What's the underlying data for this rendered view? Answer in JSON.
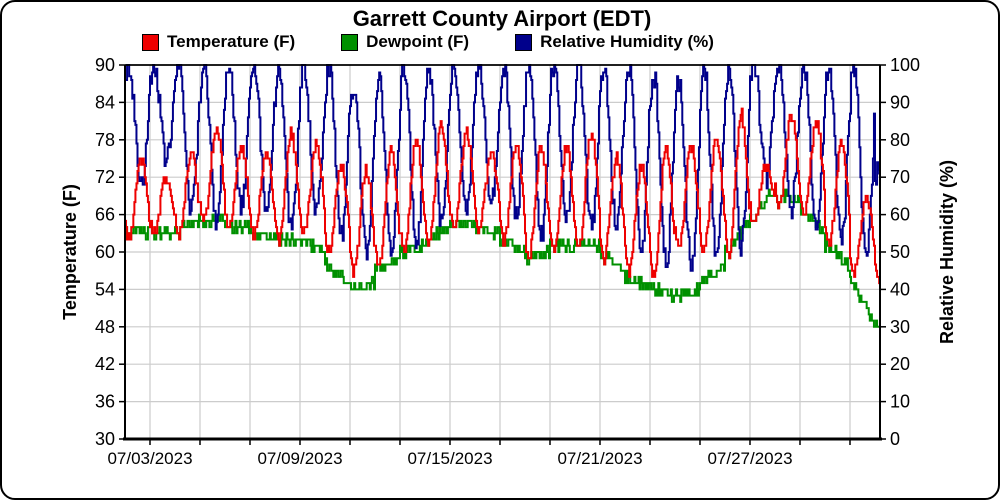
{
  "title": "Garrett County Airport (EDT)",
  "legend": [
    {
      "label": "Temperature (F)",
      "color": "#ee0000"
    },
    {
      "label": "Dewpoint (F)",
      "color": "#009000"
    },
    {
      "label": "Relative Humidity (%)",
      "color": "#00008b"
    }
  ],
  "colors": {
    "grid": "#cccccc",
    "axis": "#000000",
    "background": "#ffffff"
  },
  "chart_data": {
    "type": "line",
    "style": "hourly step lines, two y-axes",
    "title": "Garrett County Airport (EDT)",
    "grid": true,
    "noise_seed": 20230702,
    "x_axis": {
      "start_date": "07/02/2023",
      "end_date": "08/01/2023",
      "minor_tick_interval_days": 2,
      "label_interval_days": 6,
      "tick_labels": [
        "07/03/2023",
        "07/09/2023",
        "07/15/2023",
        "07/21/2023",
        "07/27/2023"
      ]
    },
    "y_left": {
      "label": "Temperature (F)",
      "min": 30,
      "max": 90,
      "tick_step": 6,
      "ticks": [
        30,
        36,
        42,
        48,
        54,
        60,
        66,
        72,
        78,
        84,
        90
      ]
    },
    "y_right": {
      "label": "Relative Humidity (%)",
      "min": 0,
      "max": 100,
      "tick_step": 10,
      "ticks": [
        0,
        10,
        20,
        30,
        40,
        50,
        60,
        70,
        80,
        90,
        100
      ]
    },
    "series_meta": [
      {
        "name": "Temperature (F)",
        "color": "#ee0000",
        "axis": "left"
      },
      {
        "name": "Dewpoint (F)",
        "color": "#009000",
        "axis": "left"
      },
      {
        "name": "Relative Humidity (%)",
        "color": "#00008b",
        "axis": "right"
      }
    ],
    "daily": [
      {
        "date": "07/02/2023",
        "temp_min": 62,
        "temp_max": 75,
        "dewpoint_start": 64,
        "dewpoint_end": 63,
        "humidity_max": 100,
        "humidity_min": 68
      },
      {
        "date": "07/03/2023",
        "temp_min": 63,
        "temp_max": 72,
        "dewpoint_start": 63,
        "dewpoint_end": 63,
        "humidity_max": 100,
        "humidity_min": 74
      },
      {
        "date": "07/04/2023",
        "temp_min": 63,
        "temp_max": 76,
        "dewpoint_start": 64,
        "dewpoint_end": 65,
        "humidity_max": 100,
        "humidity_min": 62
      },
      {
        "date": "07/05/2023",
        "temp_min": 65,
        "temp_max": 80,
        "dewpoint_start": 65,
        "dewpoint_end": 65,
        "humidity_max": 100,
        "humidity_min": 58
      },
      {
        "date": "07/06/2023",
        "temp_min": 64,
        "temp_max": 77,
        "dewpoint_start": 64,
        "dewpoint_end": 64,
        "humidity_max": 100,
        "humidity_min": 62
      },
      {
        "date": "07/07/2023",
        "temp_min": 63,
        "temp_max": 76,
        "dewpoint_start": 63,
        "dewpoint_end": 62,
        "humidity_max": 100,
        "humidity_min": 62
      },
      {
        "date": "07/08/2023",
        "temp_min": 62,
        "temp_max": 79,
        "dewpoint_start": 62,
        "dewpoint_end": 62,
        "humidity_max": 100,
        "humidity_min": 56
      },
      {
        "date": "07/09/2023",
        "temp_min": 63,
        "temp_max": 77,
        "dewpoint_start": 62,
        "dewpoint_end": 60,
        "humidity_max": 100,
        "humidity_min": 60
      },
      {
        "date": "07/10/2023",
        "temp_min": 60,
        "temp_max": 74,
        "dewpoint_start": 58,
        "dewpoint_end": 55,
        "humidity_max": 100,
        "humidity_min": 54
      },
      {
        "date": "07/11/2023",
        "temp_min": 57,
        "temp_max": 73,
        "dewpoint_start": 54,
        "dewpoint_end": 55,
        "humidity_max": 95,
        "humidity_min": 50
      },
      {
        "date": "07/12/2023",
        "temp_min": 58,
        "temp_max": 76,
        "dewpoint_start": 57,
        "dewpoint_end": 59,
        "humidity_max": 96,
        "humidity_min": 49
      },
      {
        "date": "07/13/2023",
        "temp_min": 60,
        "temp_max": 78,
        "dewpoint_start": 60,
        "dewpoint_end": 61,
        "humidity_max": 100,
        "humidity_min": 52
      },
      {
        "date": "07/14/2023",
        "temp_min": 62,
        "temp_max": 80,
        "dewpoint_start": 62,
        "dewpoint_end": 64,
        "humidity_max": 100,
        "humidity_min": 58
      },
      {
        "date": "07/15/2023",
        "temp_min": 64,
        "temp_max": 79,
        "dewpoint_start": 65,
        "dewpoint_end": 64,
        "humidity_max": 100,
        "humidity_min": 62
      },
      {
        "date": "07/16/2023",
        "temp_min": 64,
        "temp_max": 76,
        "dewpoint_start": 64,
        "dewpoint_end": 63,
        "humidity_max": 100,
        "humidity_min": 64
      },
      {
        "date": "07/17/2023",
        "temp_min": 62,
        "temp_max": 77,
        "dewpoint_start": 62,
        "dewpoint_end": 60,
        "humidity_max": 100,
        "humidity_min": 60
      },
      {
        "date": "07/18/2023",
        "temp_min": 59,
        "temp_max": 77,
        "dewpoint_start": 59,
        "dewpoint_end": 60,
        "humidity_max": 100,
        "humidity_min": 54
      },
      {
        "date": "07/19/2023",
        "temp_min": 60,
        "temp_max": 77,
        "dewpoint_start": 61,
        "dewpoint_end": 61,
        "humidity_max": 100,
        "humidity_min": 58
      },
      {
        "date": "07/20/2023",
        "temp_min": 61,
        "temp_max": 79,
        "dewpoint_start": 62,
        "dewpoint_end": 61,
        "humidity_max": 100,
        "humidity_min": 56
      },
      {
        "date": "07/21/2023",
        "temp_min": 59,
        "temp_max": 75,
        "dewpoint_start": 60,
        "dewpoint_end": 57,
        "humidity_max": 100,
        "humidity_min": 58
      },
      {
        "date": "07/22/2023",
        "temp_min": 57,
        "temp_max": 74,
        "dewpoint_start": 56,
        "dewpoint_end": 54,
        "humidity_max": 100,
        "humidity_min": 50
      },
      {
        "date": "07/23/2023",
        "temp_min": 56,
        "temp_max": 77,
        "dewpoint_start": 54,
        "dewpoint_end": 53,
        "humidity_max": 97,
        "humidity_min": 48
      },
      {
        "date": "07/24/2023",
        "temp_min": 61,
        "temp_max": 77,
        "dewpoint_start": 53,
        "dewpoint_end": 54,
        "humidity_max": 96,
        "humidity_min": 46
      },
      {
        "date": "07/25/2023",
        "temp_min": 60,
        "temp_max": 78,
        "dewpoint_start": 55,
        "dewpoint_end": 58,
        "humidity_max": 100,
        "humidity_min": 50
      },
      {
        "date": "07/26/2023",
        "temp_min": 60,
        "temp_max": 82,
        "dewpoint_start": 60,
        "dewpoint_end": 65,
        "humidity_max": 100,
        "humidity_min": 52
      },
      {
        "date": "07/27/2023",
        "temp_min": 65,
        "temp_max": 74,
        "dewpoint_start": 66,
        "dewpoint_end": 70,
        "humidity_max": 100,
        "humidity_min": 70
      },
      {
        "date": "07/28/2023",
        "temp_min": 67,
        "temp_max": 82,
        "dewpoint_start": 70,
        "dewpoint_end": 68,
        "humidity_max": 100,
        "humidity_min": 62
      },
      {
        "date": "07/29/2023",
        "temp_min": 66,
        "temp_max": 81,
        "dewpoint_start": 67,
        "dewpoint_end": 63,
        "humidity_max": 100,
        "humidity_min": 58
      },
      {
        "date": "07/30/2023",
        "temp_min": 61,
        "temp_max": 77,
        "dewpoint_start": 61,
        "dewpoint_end": 58,
        "humidity_max": 100,
        "humidity_min": 52
      },
      {
        "date": "07/31/2023",
        "temp_min": 57,
        "temp_max": 69,
        "dewpoint_start": 56,
        "dewpoint_end": 48,
        "humidity_max": 100,
        "humidity_min": 48
      },
      {
        "date": "08/01/2023",
        "temp_min": 56,
        "temp_max": 70,
        "dewpoint_start": 48,
        "dewpoint_end": 48,
        "humidity_max": 72,
        "humidity_min": 50
      }
    ]
  }
}
